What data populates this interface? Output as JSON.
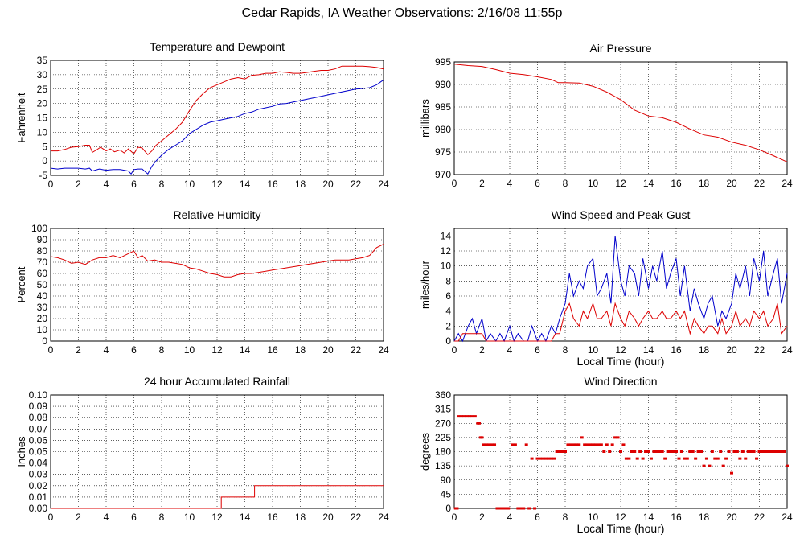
{
  "page": {
    "title": "Cedar Rapids, IA Weather Observations: 2/16/08 11:55p"
  },
  "colors": {
    "primary": "#dd0000",
    "secondary": "#0000cc",
    "grid": "#000000"
  },
  "chart_data": [
    {
      "id": "temp",
      "type": "line",
      "title": "Temperature and Dewpoint",
      "ylabel": "Fahrenheit",
      "xlabel": "",
      "xlim": [
        0,
        24
      ],
      "ylim": [
        -5,
        35
      ],
      "yticks": [
        -5,
        0,
        5,
        10,
        15,
        20,
        25,
        30,
        35
      ],
      "xticks": [
        0,
        2,
        4,
        6,
        8,
        10,
        12,
        14,
        16,
        18,
        20,
        22,
        24
      ],
      "grid": true,
      "series": [
        {
          "color": "#dd0000",
          "x": [
            0,
            0.5,
            1,
            1.5,
            2,
            2.5,
            2.8,
            3,
            3.3,
            3.6,
            4,
            4.3,
            4.6,
            5,
            5.3,
            5.6,
            6,
            6.3,
            6.6,
            7,
            7.3,
            7.6,
            8,
            8.5,
            9,
            9.5,
            10,
            10.5,
            11,
            11.5,
            12,
            12.5,
            13,
            13.5,
            14,
            14.5,
            15,
            15.5,
            16,
            16.5,
            17,
            17.5,
            18,
            18.5,
            19,
            19.5,
            20,
            20.5,
            21,
            21.5,
            22,
            22.5,
            23,
            23.5,
            24
          ],
          "y": [
            3.5,
            3.5,
            4,
            4.8,
            5,
            5.5,
            5.5,
            3,
            3.8,
            4.8,
            3.5,
            4.2,
            3.2,
            3.8,
            2.8,
            4.2,
            2.5,
            4.8,
            4.5,
            2.2,
            3.5,
            5.5,
            7,
            9,
            11,
            13.5,
            17.5,
            21,
            23.5,
            25.5,
            26.5,
            27.5,
            28.5,
            29,
            28.5,
            29.8,
            30,
            30.5,
            30.5,
            31,
            30.8,
            30.5,
            30.5,
            30.8,
            31.2,
            31.5,
            31.5,
            32,
            33,
            33,
            33,
            33,
            32.8,
            32.5,
            32
          ]
        },
        {
          "color": "#0000cc",
          "x": [
            0,
            0.5,
            1,
            1.5,
            2,
            2.5,
            2.8,
            3,
            3.5,
            4,
            4.5,
            5,
            5.3,
            5.6,
            5.8,
            6,
            6.3,
            6.6,
            7,
            7.3,
            7.6,
            8,
            8.5,
            9,
            9.5,
            10,
            10.5,
            11,
            11.5,
            12,
            12.5,
            13,
            13.5,
            14,
            14.5,
            15,
            15.5,
            16,
            16.5,
            17,
            17.5,
            18,
            18.5,
            19,
            19.5,
            20,
            20.5,
            21,
            21.5,
            22,
            22.5,
            23,
            23.5,
            24
          ],
          "y": [
            -2.5,
            -2.8,
            -2.5,
            -2.5,
            -2.5,
            -2.8,
            -2.5,
            -3.5,
            -2.8,
            -3.2,
            -3,
            -3,
            -3.2,
            -3.5,
            -4.5,
            -3,
            -2.8,
            -2.8,
            -4.5,
            -1.8,
            0,
            2,
            4,
            5.5,
            7,
            9.5,
            11,
            12.5,
            13.5,
            14,
            14.5,
            15,
            15.5,
            16.5,
            17,
            18,
            18.5,
            19,
            19.8,
            20,
            20.5,
            21,
            21.5,
            22,
            22.5,
            23,
            23.5,
            24,
            24.5,
            25,
            25.2,
            25.5,
            26.5,
            28.2
          ]
        }
      ]
    },
    {
      "id": "pressure",
      "type": "line",
      "title": "Air Pressure",
      "ylabel": "millibars",
      "xlabel": "",
      "xlim": [
        0,
        24
      ],
      "ylim": [
        970,
        995
      ],
      "yticks": [
        970,
        975,
        980,
        985,
        990,
        995
      ],
      "xticks": [
        0,
        2,
        4,
        6,
        8,
        10,
        12,
        14,
        16,
        18,
        20,
        22,
        24
      ],
      "grid": true,
      "series": [
        {
          "color": "#dd0000",
          "x": [
            0,
            1,
            2,
            3,
            4,
            5,
            6,
            7,
            7.5,
            8,
            9,
            10,
            11,
            12,
            13,
            14,
            15,
            16,
            17,
            18,
            19,
            20,
            21,
            22,
            23,
            24
          ],
          "y": [
            994.5,
            994.2,
            994,
            993.3,
            992.5,
            992.2,
            991.7,
            991.1,
            990.4,
            990.4,
            990.3,
            989.6,
            988.3,
            986.6,
            984.3,
            983,
            982.6,
            981.6,
            980.1,
            978.8,
            978.3,
            977.2,
            976.5,
            975.5,
            974.2,
            972.8
          ]
        }
      ]
    },
    {
      "id": "humidity",
      "type": "line",
      "title": "Relative Humidity",
      "ylabel": "Percent",
      "xlabel": "",
      "xlim": [
        0,
        24
      ],
      "ylim": [
        0,
        100
      ],
      "yticks": [
        0,
        10,
        20,
        30,
        40,
        50,
        60,
        70,
        80,
        90,
        100
      ],
      "xticks": [
        0,
        2,
        4,
        6,
        8,
        10,
        12,
        14,
        16,
        18,
        20,
        22,
        24
      ],
      "grid": true,
      "series": [
        {
          "color": "#dd0000",
          "x": [
            0,
            0.5,
            1,
            1.5,
            2,
            2.5,
            3,
            3.5,
            4,
            4.5,
            5,
            5.5,
            6,
            6.3,
            6.6,
            7,
            7.5,
            8,
            8.5,
            9,
            9.5,
            10,
            10.5,
            11,
            11.5,
            12,
            12.5,
            13,
            13.5,
            14,
            14.5,
            15,
            15.5,
            16,
            16.5,
            17,
            17.5,
            18,
            18.5,
            19,
            19.5,
            20,
            20.5,
            21,
            21.5,
            22,
            22.5,
            23,
            23.5,
            24
          ],
          "y": [
            75,
            74,
            72,
            69,
            70,
            68,
            72,
            74,
            74,
            76,
            74,
            77,
            80,
            74,
            76,
            71,
            72,
            70,
            70,
            69,
            68,
            65,
            64,
            62,
            60,
            59,
            57,
            57,
            59,
            60,
            60,
            61,
            62,
            63,
            64,
            65,
            66,
            67,
            68,
            69,
            70,
            71,
            72,
            72,
            72,
            73,
            74,
            76,
            83,
            86
          ]
        }
      ]
    },
    {
      "id": "wind",
      "type": "line",
      "title": "Wind Speed and Peak Gust",
      "ylabel": "miles/hour",
      "xlabel": "Local Time (hour)",
      "xlim": [
        0,
        24
      ],
      "ylim": [
        0,
        15
      ],
      "yticks": [
        0,
        2,
        4,
        6,
        8,
        10,
        12,
        14
      ],
      "xticks": [
        0,
        2,
        4,
        6,
        8,
        10,
        12,
        14,
        16,
        18,
        20,
        22,
        24
      ],
      "grid": true,
      "series": [
        {
          "color": "#0000cc",
          "x": [
            0,
            0.3,
            0.6,
            1,
            1.3,
            1.6,
            2,
            2.3,
            2.6,
            3,
            3.3,
            3.6,
            4,
            4.3,
            4.6,
            5,
            5.3,
            5.6,
            6,
            6.3,
            6.6,
            7,
            7.3,
            7.6,
            8,
            8.3,
            8.6,
            9,
            9.3,
            9.6,
            10,
            10.3,
            10.6,
            11,
            11.3,
            11.6,
            12,
            12.3,
            12.6,
            13,
            13.3,
            13.6,
            14,
            14.3,
            14.6,
            15,
            15.3,
            15.6,
            16,
            16.3,
            16.6,
            17,
            17.3,
            17.6,
            18,
            18.3,
            18.6,
            19,
            19.3,
            19.6,
            20,
            20.3,
            20.6,
            21,
            21.3,
            21.6,
            22,
            22.3,
            22.6,
            23,
            23.3,
            23.6,
            24
          ],
          "y": [
            0,
            1,
            0,
            2,
            3,
            1,
            3,
            0,
            1,
            0,
            1,
            0,
            2,
            0,
            1,
            0,
            0,
            2,
            0,
            1,
            0,
            2,
            1,
            3,
            5,
            9,
            6,
            8,
            7,
            10,
            11,
            6,
            7,
            9,
            5,
            14,
            8,
            6,
            10,
            9,
            6,
            11,
            7,
            10,
            8,
            12,
            7,
            9,
            11,
            6,
            10,
            4,
            7,
            5,
            3,
            5,
            6,
            2,
            4,
            3,
            5,
            9,
            7,
            10,
            6,
            11,
            8,
            12,
            6,
            9,
            11,
            5,
            9
          ]
        },
        {
          "color": "#dd0000",
          "x": [
            0,
            0.3,
            0.6,
            1,
            1.3,
            1.6,
            2,
            2.3,
            2.6,
            3,
            3.3,
            3.6,
            4,
            4.3,
            4.6,
            5,
            5.3,
            5.6,
            6,
            6.3,
            6.6,
            7,
            7.3,
            7.6,
            8,
            8.3,
            8.6,
            9,
            9.3,
            9.6,
            10,
            10.3,
            10.6,
            11,
            11.3,
            11.6,
            12,
            12.3,
            12.6,
            13,
            13.3,
            13.6,
            14,
            14.3,
            14.6,
            15,
            15.3,
            15.6,
            16,
            16.3,
            16.6,
            17,
            17.3,
            17.6,
            18,
            18.3,
            18.6,
            19,
            19.3,
            19.6,
            20,
            20.3,
            20.6,
            21,
            21.3,
            21.6,
            22,
            22.3,
            22.6,
            23,
            23.3,
            23.6,
            24
          ],
          "y": [
            0,
            0,
            1,
            1,
            1,
            1,
            1,
            0,
            0,
            0,
            0,
            0,
            0,
            0,
            0,
            0,
            0,
            0,
            0,
            0,
            0,
            0,
            1,
            1,
            4,
            5,
            3,
            2,
            4,
            3,
            5,
            3,
            3,
            4,
            2,
            5,
            3,
            2,
            4,
            3,
            2,
            3,
            4,
            3,
            3,
            4,
            3,
            3,
            4,
            3,
            4,
            1,
            3,
            2,
            1,
            2,
            2,
            1,
            3,
            1,
            2,
            4,
            2,
            3,
            2,
            4,
            3,
            4,
            2,
            3,
            5,
            1,
            2
          ]
        }
      ]
    },
    {
      "id": "rain",
      "type": "line",
      "title": "24 hour Accumulated Rainfall",
      "ylabel": "Inches",
      "xlabel": "",
      "xlim": [
        0,
        24
      ],
      "ylim": [
        0,
        0.1
      ],
      "yticks": [
        "0.00",
        "0.01",
        "0.02",
        "0.03",
        "0.04",
        "0.05",
        "0.06",
        "0.07",
        "0.08",
        "0.09",
        "0.10"
      ],
      "xticks": [
        0,
        2,
        4,
        6,
        8,
        10,
        12,
        14,
        16,
        18,
        20,
        22,
        24
      ],
      "grid": true,
      "series": [
        {
          "color": "#dd0000",
          "x": [
            0,
            12.3,
            12.3,
            14.7,
            14.7,
            24
          ],
          "y": [
            0,
            0,
            0.01,
            0.01,
            0.02,
            0.02
          ]
        }
      ]
    },
    {
      "id": "direction",
      "type": "scatter",
      "title": "Wind Direction",
      "ylabel": "degrees",
      "xlabel": "Local Time (hour)",
      "xlim": [
        0,
        24
      ],
      "ylim": [
        0,
        360
      ],
      "yticks": [
        0,
        45,
        90,
        135,
        180,
        225,
        270,
        315,
        360
      ],
      "xticks": [
        0,
        2,
        4,
        6,
        8,
        10,
        12,
        14,
        16,
        18,
        20,
        22,
        24
      ],
      "grid": true,
      "series": [
        {
          "color": "#dd0000",
          "x": [
            0.1,
            0.2,
            0.3,
            0.5,
            0.7,
            0.9,
            1.1,
            1.3,
            1.5,
            1.7,
            1.8,
            1.9,
            2,
            2.1,
            2.3,
            2.5,
            2.7,
            2.9,
            3.1,
            3.3,
            3.5,
            3.7,
            3.9,
            4.2,
            4.4,
            4.6,
            4.8,
            5,
            5.2,
            5.4,
            5.6,
            5.8,
            6,
            6.2,
            6.4,
            6.6,
            6.8,
            7,
            7.2,
            7.4,
            7.6,
            7.8,
            8,
            8.2,
            8.4,
            8.6,
            8.8,
            9,
            9.2,
            9.4,
            9.6,
            9.8,
            10,
            10.2,
            10.4,
            10.6,
            10.8,
            11,
            11.2,
            11.4,
            11.6,
            11.8,
            12,
            12.2,
            12.4,
            12.6,
            12.8,
            13,
            13.2,
            13.4,
            13.6,
            13.8,
            14,
            14.2,
            14.4,
            14.6,
            14.8,
            15,
            15.2,
            15.4,
            15.6,
            15.8,
            16,
            16.2,
            16.4,
            16.6,
            16.8,
            17,
            17.2,
            17.4,
            17.6,
            17.8,
            18,
            18.2,
            18.4,
            18.6,
            18.8,
            19,
            19.2,
            19.4,
            19.6,
            19.8,
            20,
            20.2,
            20.4,
            20.6,
            20.8,
            21,
            21.2,
            21.4,
            21.6,
            21.8,
            22,
            22.2,
            22.4,
            22.6,
            22.8,
            23,
            23.2,
            23.4,
            23.6,
            23.8,
            24
          ],
          "y": [
            0,
            0,
            292,
            292,
            292,
            292,
            292,
            292,
            292,
            270,
            270,
            225,
            225,
            202,
            202,
            202,
            202,
            202,
            0,
            0,
            0,
            0,
            0,
            202,
            202,
            0,
            0,
            0,
            202,
            0,
            158,
            0,
            158,
            158,
            158,
            158,
            158,
            158,
            158,
            180,
            180,
            180,
            180,
            202,
            202,
            202,
            202,
            202,
            225,
            202,
            202,
            202,
            202,
            202,
            202,
            202,
            180,
            202,
            180,
            202,
            225,
            225,
            180,
            202,
            158,
            158,
            180,
            180,
            158,
            180,
            158,
            180,
            180,
            158,
            180,
            180,
            180,
            180,
            158,
            180,
            180,
            180,
            180,
            158,
            180,
            158,
            158,
            180,
            180,
            158,
            180,
            180,
            135,
            158,
            135,
            180,
            158,
            158,
            180,
            135,
            158,
            180,
            112,
            180,
            180,
            158,
            180,
            158,
            180,
            180,
            180,
            158,
            180,
            180,
            180,
            180,
            180,
            180,
            180,
            180,
            180,
            180,
            135
          ]
        }
      ]
    }
  ]
}
